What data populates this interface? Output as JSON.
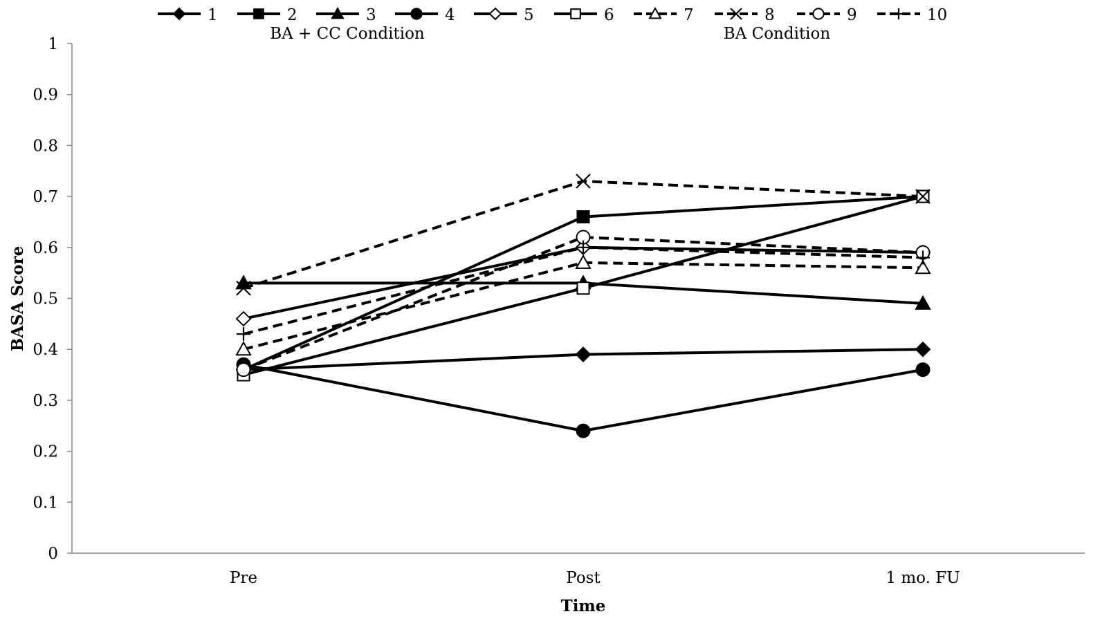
{
  "chart_data": {
    "type": "line",
    "xlabel": "Time",
    "ylabel": "BASA Score",
    "categories": [
      "Pre",
      "Post",
      "1 mo. FU"
    ],
    "ylim": [
      0,
      1
    ],
    "yticks": [
      "0",
      "0.1",
      "0.2",
      "0.3",
      "0.4",
      "0.5",
      "0.6",
      "0.7",
      "0.8",
      "0.9",
      "1"
    ],
    "grid": false,
    "legend_position": "top",
    "group_labels": [
      "BA + CC Condition",
      "BA Condition"
    ],
    "series": [
      {
        "name": "1",
        "values": [
          0.36,
          0.39,
          0.4
        ],
        "marker": "diamond",
        "filled": true,
        "dash": false
      },
      {
        "name": "2",
        "values": [
          0.36,
          0.66,
          0.7
        ],
        "marker": "square",
        "filled": true,
        "dash": false
      },
      {
        "name": "3",
        "values": [
          0.53,
          0.53,
          0.49
        ],
        "marker": "triangle",
        "filled": true,
        "dash": false
      },
      {
        "name": "4",
        "values": [
          0.37,
          0.24,
          0.36
        ],
        "marker": "circle",
        "filled": true,
        "dash": false
      },
      {
        "name": "5",
        "values": [
          0.46,
          0.6,
          0.59
        ],
        "marker": "diamond",
        "filled": false,
        "dash": false
      },
      {
        "name": "6",
        "values": [
          0.35,
          0.52,
          0.7
        ],
        "marker": "square",
        "filled": false,
        "dash": false
      },
      {
        "name": "7",
        "values": [
          0.4,
          0.57,
          0.56
        ],
        "marker": "triangle",
        "filled": false,
        "dash": true
      },
      {
        "name": "8",
        "values": [
          0.52,
          0.73,
          0.7
        ],
        "marker": "x",
        "filled": false,
        "dash": true
      },
      {
        "name": "9",
        "values": [
          0.36,
          0.62,
          0.59
        ],
        "marker": "circle",
        "filled": false,
        "dash": true
      },
      {
        "name": "10",
        "values": [
          0.43,
          0.6,
          0.58
        ],
        "marker": "plus",
        "filled": false,
        "dash": true
      }
    ],
    "colors": {
      "line": "#000000",
      "background": "#ffffff"
    }
  }
}
